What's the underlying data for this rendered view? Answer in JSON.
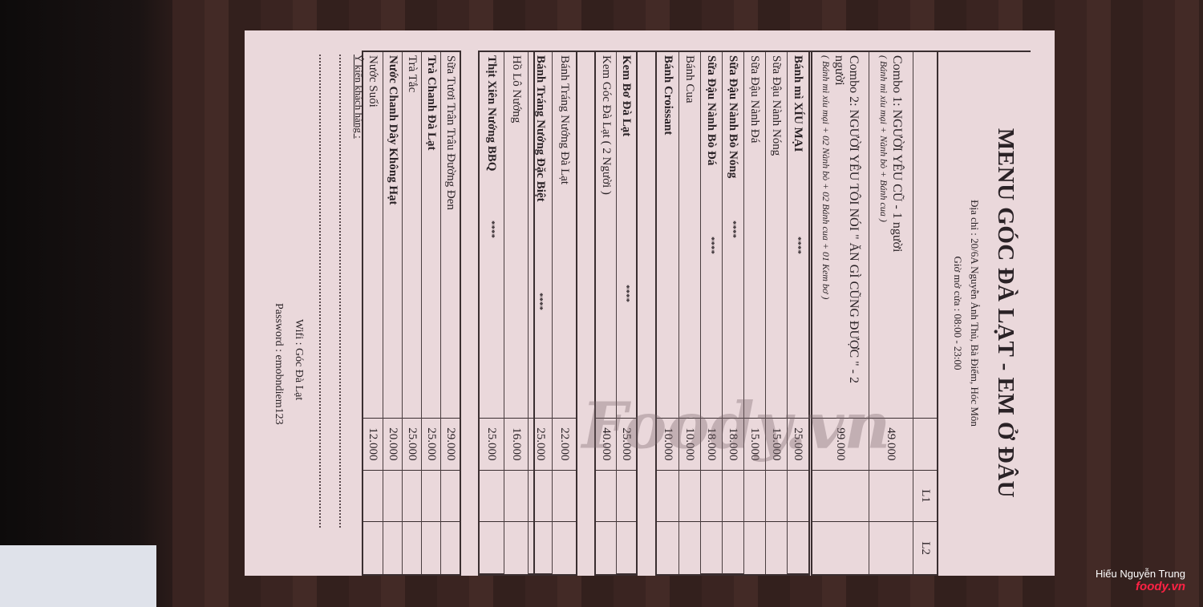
{
  "menu": {
    "title": "MENU GÓC ĐÀ LẠT - EM Ở ĐÂU",
    "address": "Địa chỉ : 20/6A Nguyễn Ảnh Thủ, Bà Điểm, Hóc Môn",
    "hours": "Giờ mở cửa : 08:00 - 23:00",
    "col_l1": "L1",
    "col_l2": "L2",
    "combos": [
      {
        "name": "Combo 1: NGƯỜI YÊU CŨ - 1 người",
        "detail": "( Bánh mì xíu mại + Nành bò + Bánh cua )",
        "price": "49.000"
      },
      {
        "name": "Combo 2: NGƯỜI YÊU TÔI NÓI \" ĂN GÌ CŨNG ĐƯỢC \" - 2 người",
        "detail": "( Bánh mì xíu mại + 02 Nành bò + 02 Bánh cua + 01 Kem bơ )",
        "price": "99.000"
      }
    ],
    "stars": "****",
    "section1": [
      {
        "name": "Bánh mì XÍU MẠI",
        "price": "25.000",
        "bold": true,
        "star": true
      },
      {
        "name": "Sữa Đậu Nành Nóng",
        "price": "15.000"
      },
      {
        "name": "Sữa Đậu Nành Đá",
        "price": "15.000"
      },
      {
        "name": "Sữa Đậu Nành Bò Nóng",
        "price": "18.000",
        "bold": true,
        "star": true
      },
      {
        "name": "Sữa Đậu Nành Bò Đá",
        "price": "18.000",
        "bold": true,
        "star": true
      },
      {
        "name": "Bánh Cua",
        "price": "10.000"
      },
      {
        "name": "Bánh Croissant",
        "price": "10.000",
        "bold": true
      }
    ],
    "section2": [
      {
        "name": "Kem Bơ Đà Lạt",
        "price": "25.000",
        "bold": true,
        "star": true
      },
      {
        "name": "Kem Góc Đà Lạt ( 2 Người )",
        "price": "40.000"
      }
    ],
    "section3": [
      {
        "name": "Bánh Tráng Nướng Đà Lạt",
        "price": "22.000"
      },
      {
        "name": "Bánh Tráng Nướng Đặc Biệt",
        "price": "25.000",
        "bold": true,
        "star": true
      },
      {
        "name": "Hồ Lô Nướng",
        "price": "16.000"
      },
      {
        "name": "Thịt Xiên Nướng BBQ",
        "price": "25.000",
        "bold": true,
        "star": true
      }
    ],
    "section4": [
      {
        "name": "Sữa Tươi Trân Trâu Đường Đen",
        "price": "29.000"
      },
      {
        "name": "Trà Chanh Đà Lạt",
        "price": "25.000",
        "bold": true
      },
      {
        "name": "Trà Tắc",
        "price": "25.000"
      },
      {
        "name": "Nước Chanh Dây Không Hạt",
        "price": "20.000",
        "bold": true
      },
      {
        "name": "Nước Suối",
        "price": "12.000"
      }
    ],
    "feedback": "Ý kiến khách hàng :",
    "wifi": "Wifi : Góc Đà Lạt",
    "password": "Password : emobndiem123"
  },
  "watermark": {
    "logo": "Foody.vn",
    "author": "Hiếu Nguyễn Trung",
    "site": "foody.vn"
  },
  "colors": {
    "paper": "#ead8db",
    "ink": "#2a2226",
    "wood": "#3b2623"
  }
}
